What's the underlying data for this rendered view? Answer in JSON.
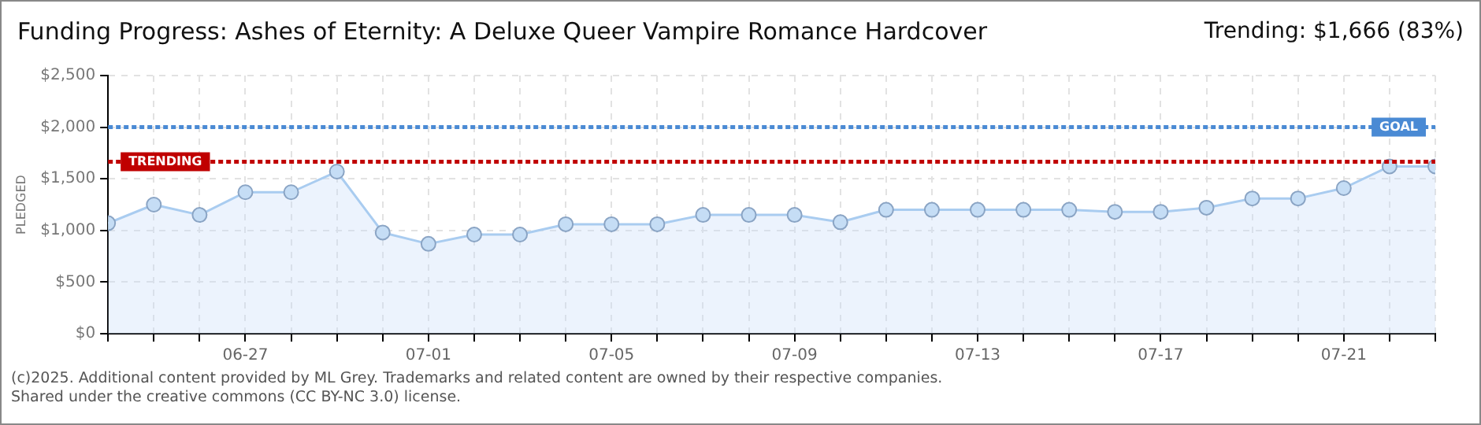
{
  "chart_data": {
    "type": "area",
    "title": "Funding Progress: Ashes of Eternity: A Deluxe Queer Vampire Romance Hardcover",
    "subtitle": "Trending:  $1,666 (83%)",
    "ylabel": "PLEDGED",
    "x": [
      "--06-24",
      "--06-25",
      "--06-26",
      "--06-27",
      "--06-28",
      "--06-29",
      "--06-30",
      "--07-01",
      "--07-02",
      "--07-03",
      "--07-04",
      "--07-05",
      "--07-06",
      "--07-07",
      "--07-08",
      "--07-09",
      "--07-10",
      "--07-11",
      "--07-12",
      "--07-13",
      "--07-14",
      "--07-15",
      "--07-16",
      "--07-17",
      "--07-18",
      "--07-19",
      "--07-20",
      "--07-21",
      "--07-22",
      "--07-23"
    ],
    "series": [
      {
        "color": "#a9ccf0",
        "values": [
          1070,
          1250,
          1150,
          1370,
          1370,
          1570,
          980,
          870,
          960,
          960,
          1060,
          1060,
          1060,
          1150,
          1150,
          1150,
          1080,
          1200,
          1200,
          1200,
          1200,
          1200,
          1180,
          1180,
          1220,
          1310,
          1310,
          1410,
          1620,
          1620
        ]
      }
    ],
    "xlim": [
      "--06-24",
      "--07-23"
    ],
    "xticks": [
      {
        "value": "--06-24",
        "label": null
      },
      {
        "value": "--06-25",
        "label": null
      },
      {
        "value": "--06-26",
        "label": null
      },
      {
        "value": "--06-27",
        "label": "06-27"
      },
      {
        "value": "--06-28",
        "label": null
      },
      {
        "value": "--06-29",
        "label": null
      },
      {
        "value": "--06-30",
        "label": null
      },
      {
        "value": "--07-01",
        "label": "07-01"
      },
      {
        "value": "--07-02",
        "label": null
      },
      {
        "value": "--07-03",
        "label": null
      },
      {
        "value": "--07-04",
        "label": null
      },
      {
        "value": "--07-05",
        "label": "07-05"
      },
      {
        "value": "--07-06",
        "label": null
      },
      {
        "value": "--07-07",
        "label": null
      },
      {
        "value": "--07-08",
        "label": null
      },
      {
        "value": "--07-09",
        "label": "07-09"
      },
      {
        "value": "--07-10",
        "label": null
      },
      {
        "value": "--07-11",
        "label": null
      },
      {
        "value": "--07-12",
        "label": null
      },
      {
        "value": "--07-13",
        "label": "07-13"
      },
      {
        "value": "--07-14",
        "label": null
      },
      {
        "value": "--07-15",
        "label": null
      },
      {
        "value": "--07-16",
        "label": null
      },
      {
        "value": "--07-17",
        "label": "07-17"
      },
      {
        "value": "--07-18",
        "label": null
      },
      {
        "value": "--07-19",
        "label": null
      },
      {
        "value": "--07-20",
        "label": null
      },
      {
        "value": "--07-21",
        "label": "07-21"
      },
      {
        "value": "--07-22",
        "label": null
      },
      {
        "value": "--07-23",
        "label": null
      }
    ],
    "ylim": [
      0,
      2500
    ],
    "yticks": [
      {
        "value": 0,
        "label": "$0"
      },
      {
        "value": 500,
        "label": "$500"
      },
      {
        "value": 1000,
        "label": "$1,000"
      },
      {
        "value": 1500,
        "label": "$1,500"
      },
      {
        "value": 2000,
        "label": "$2,000"
      },
      {
        "value": 2500,
        "label": "$2,500"
      }
    ],
    "ref_lines": [
      {
        "axis": "y",
        "value": 2000,
        "label": "GOAL",
        "color": "#4a8ad4",
        "line_style": "dotted"
      },
      {
        "axis": "y",
        "value": 1666,
        "label": "TRENDING",
        "color": "#c00000",
        "line_style": "dotted"
      }
    ],
    "grid": true,
    "legend": false,
    "marker": "circle",
    "line_style": "solid",
    "annotations": [
      "(c)2025. Additional content provided by ML Grey. Trademarks and related content are owned by their respective companies.",
      "Shared under the creative commons (CC BY-NC 3.0) license."
    ]
  }
}
